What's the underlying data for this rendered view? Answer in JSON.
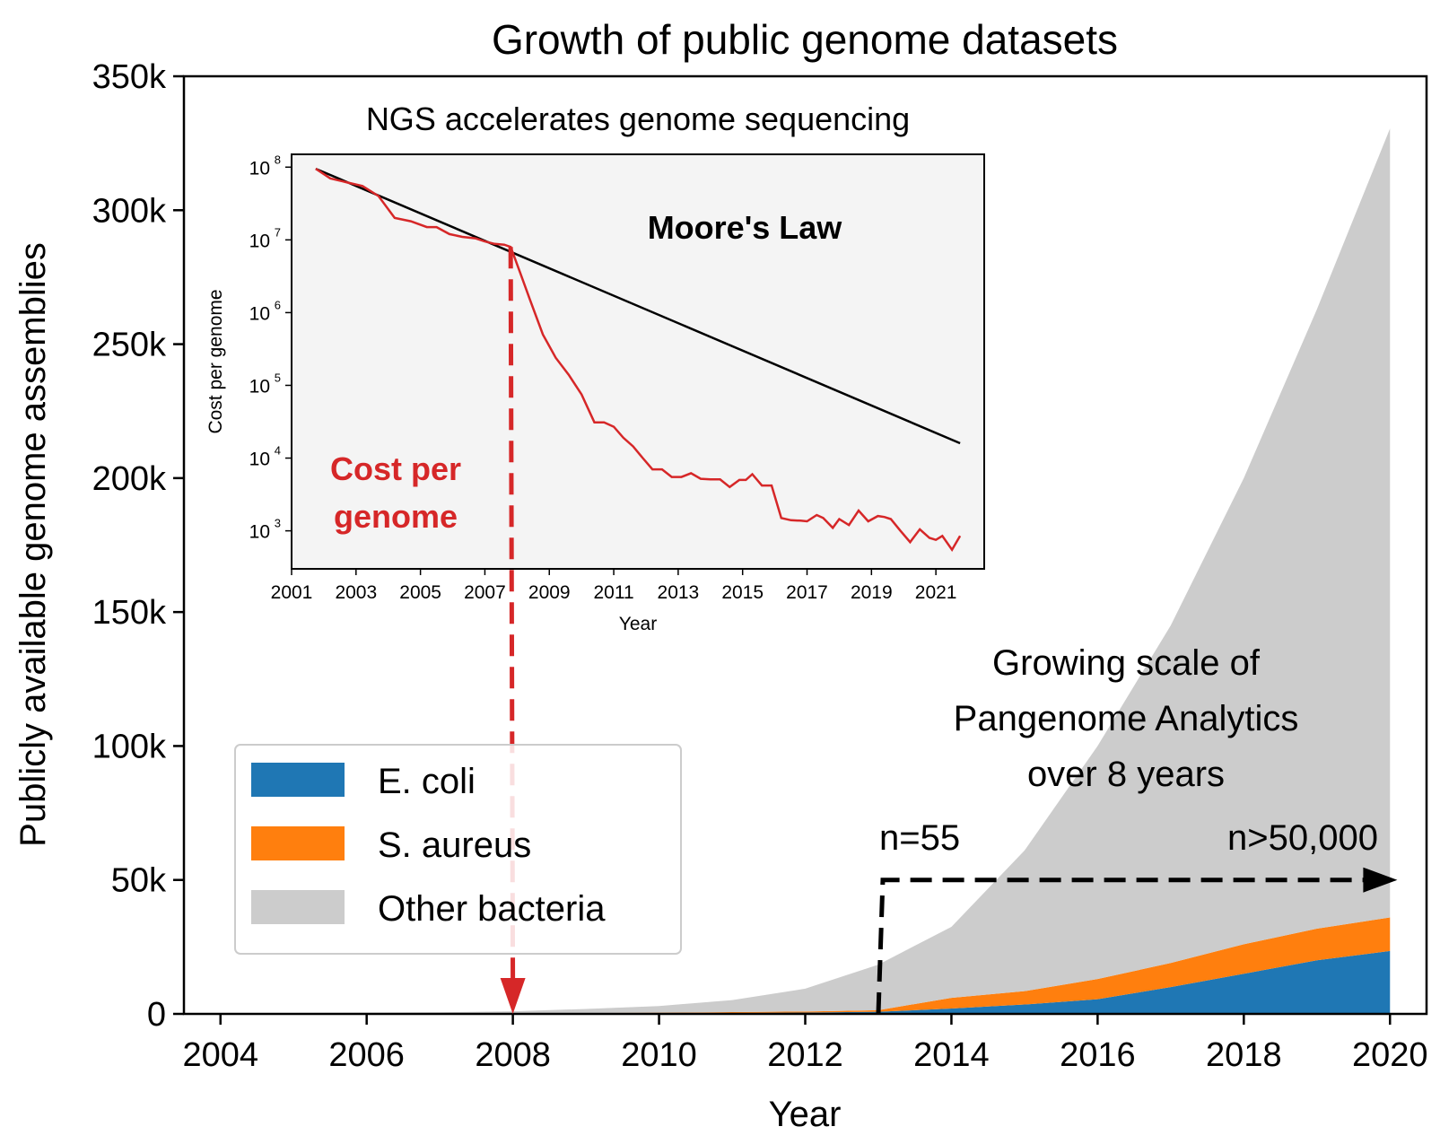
{
  "chart_data": [
    {
      "type": "area",
      "stacked": true,
      "title": "Growth of public genome datasets",
      "xlabel": "Year",
      "ylabel": "Publicly available genome assemblies",
      "xlim": [
        2003.5,
        2020.5
      ],
      "ylim": [
        0,
        350000
      ],
      "xticks": [
        2004,
        2006,
        2008,
        2010,
        2012,
        2014,
        2016,
        2018,
        2020
      ],
      "yticks": [
        {
          "value": 0,
          "label": "0"
        },
        {
          "value": 50000,
          "label": "50k"
        },
        {
          "value": 100000,
          "label": "100k"
        },
        {
          "value": 150000,
          "label": "150k"
        },
        {
          "value": 200000,
          "label": "200k"
        },
        {
          "value": 250000,
          "label": "250k"
        },
        {
          "value": 300000,
          "label": "300k"
        },
        {
          "value": 350000,
          "label": "350k"
        }
      ],
      "x": [
        2004,
        2005,
        2006,
        2007,
        2008,
        2009,
        2010,
        2011,
        2012,
        2013,
        2014,
        2015,
        2016,
        2017,
        2018,
        2019,
        2020
      ],
      "series": [
        {
          "name": "E. coli",
          "color": "#1f77b4",
          "values": [
            50,
            80,
            100,
            120,
            150,
            200,
            250,
            350,
            500,
            800,
            2000,
            3500,
            5500,
            10000,
            15000,
            20000,
            23500
          ]
        },
        {
          "name": "S. aureus",
          "color": "#ff7f0e",
          "values": [
            30,
            40,
            60,
            80,
            100,
            150,
            200,
            300,
            400,
            600,
            4000,
            5000,
            7500,
            9000,
            11000,
            11800,
            12500
          ]
        },
        {
          "name": "Other bacteria",
          "color": "#cccccc",
          "values": [
            150,
            200,
            300,
            400,
            700,
            1500,
            2500,
            4500,
            8500,
            17000,
            26500,
            52500,
            87000,
            126000,
            174000,
            231200,
            294500
          ]
        }
      ],
      "legend": {
        "position": "lower-left"
      },
      "annotations": {
        "growing_scale": [
          "Growing scale of",
          "Pangenome Analytics",
          "over 8 years"
        ],
        "n_start": "n=55",
        "n_end": "n>50,000",
        "arrow": {
          "x_start": 2013,
          "x_end": 2020.1,
          "y": 50000
        }
      }
    },
    {
      "type": "line",
      "title": "NGS accelerates genome sequencing",
      "xlabel": "Year",
      "ylabel": "Cost per genome",
      "yscale": "log",
      "xlim": [
        2001,
        2022.5
      ],
      "ylim": [
        300,
        150000000
      ],
      "xticks": [
        2001,
        2003,
        2005,
        2007,
        2009,
        2011,
        2013,
        2015,
        2017,
        2019,
        2021
      ],
      "yticks": [
        {
          "value": 1000,
          "base": "10",
          "exp": "3"
        },
        {
          "value": 10000,
          "base": "10",
          "exp": "4"
        },
        {
          "value": 100000,
          "base": "10",
          "exp": "5"
        },
        {
          "value": 1000000,
          "base": "10",
          "exp": "6"
        },
        {
          "value": 10000000,
          "base": "10",
          "exp": "7"
        },
        {
          "value": 100000000,
          "base": "10",
          "exp": "8"
        }
      ],
      "series": [
        {
          "name": "Moore's Law",
          "color": "#000000",
          "x": [
            2001.75,
            2021.75
          ],
          "y": [
            95000000,
            16000
          ]
        },
        {
          "name": "Cost per genome",
          "color": "#d62728",
          "x": [
            2001.75,
            2002.2,
            2002.7,
            2003.2,
            2003.7,
            2004.2,
            2004.7,
            2005.2,
            2005.5,
            2005.9,
            2006.3,
            2006.7,
            2007.0,
            2007.3,
            2007.6,
            2007.8,
            2008.1,
            2008.4,
            2008.8,
            2009.2,
            2009.6,
            2010.0,
            2010.4,
            2010.7,
            2011.0,
            2011.3,
            2011.6,
            2011.9,
            2012.2,
            2012.5,
            2012.8,
            2013.1,
            2013.4,
            2013.7,
            2014.0,
            2014.3,
            2014.6,
            2014.9,
            2015.1,
            2015.3,
            2015.6,
            2015.9,
            2016.2,
            2016.5,
            2016.8,
            2017.0,
            2017.3,
            2017.5,
            2017.8,
            2018.0,
            2018.3,
            2018.6,
            2018.9,
            2019.2,
            2019.4,
            2019.6,
            2019.9,
            2020.2,
            2020.5,
            2020.8,
            2021.0,
            2021.2,
            2021.5,
            2021.75
          ],
          "y": [
            95000000,
            70000000,
            62000000,
            55000000,
            40000000,
            20000000,
            18000000,
            15000000,
            15000000,
            12000000,
            11000000,
            10500000,
            9500000,
            8800000,
            8600000,
            8000000,
            3500000,
            1500000,
            500000,
            240000,
            140000,
            75000,
            31000,
            31000,
            27000,
            19000,
            14500,
            10000,
            7000,
            7000,
            5500,
            5500,
            6200,
            5200,
            5100,
            5100,
            4000,
            5000,
            5000,
            6000,
            4200,
            4200,
            1500,
            1400,
            1380,
            1350,
            1650,
            1500,
            1100,
            1450,
            1200,
            1900,
            1350,
            1600,
            1550,
            1450,
            1000,
            700,
            1050,
            800,
            750,
            850,
            550,
            850
          ]
        }
      ],
      "annotations": {
        "moore_label": "Moore's Law",
        "cost_label": [
          "Cost per",
          "genome"
        ]
      },
      "connector": {
        "from_inset_x": 2007.8,
        "to_main_x": 2008,
        "to_main_y": 0
      }
    }
  ]
}
